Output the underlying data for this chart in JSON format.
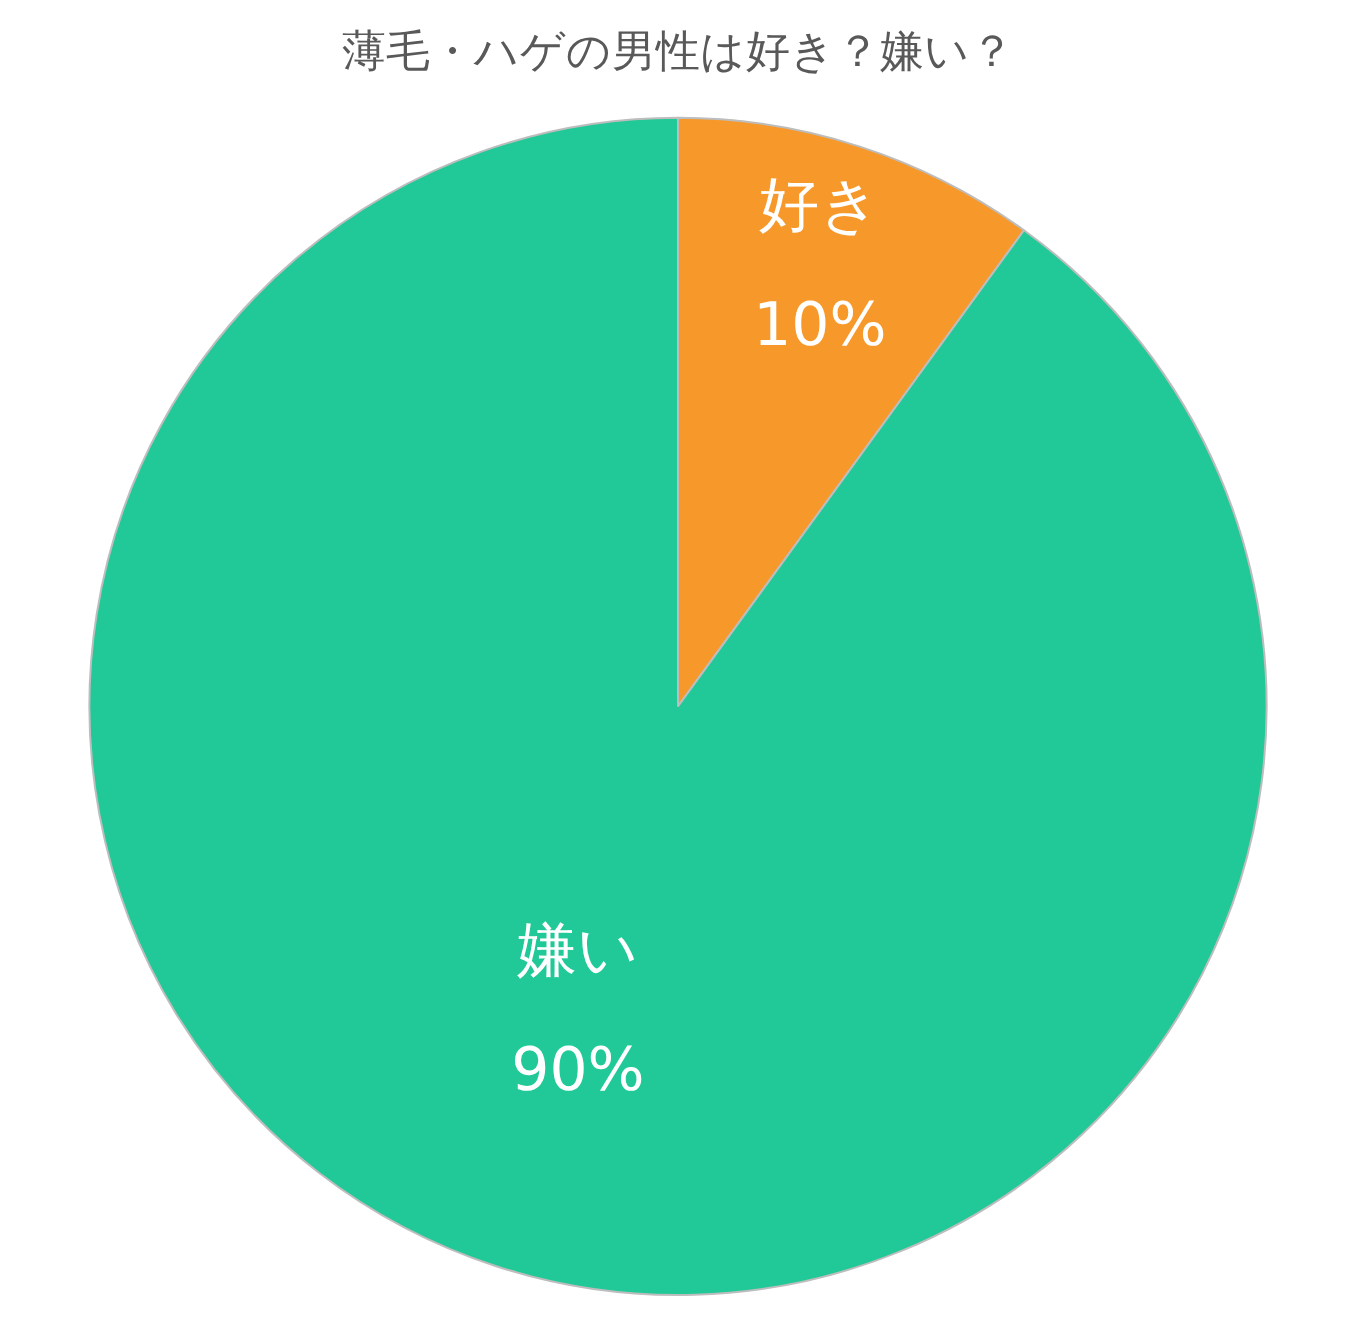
{
  "chart_data": {
    "type": "pie",
    "title": "薄毛・ハゲの男性は好き？嫌い？",
    "categories": [
      "好き",
      "嫌い"
    ],
    "values": [
      10,
      90
    ],
    "colors": [
      "#f7992a",
      "#20c997"
    ],
    "value_labels": [
      "10%",
      "90%"
    ],
    "legend": false
  }
}
